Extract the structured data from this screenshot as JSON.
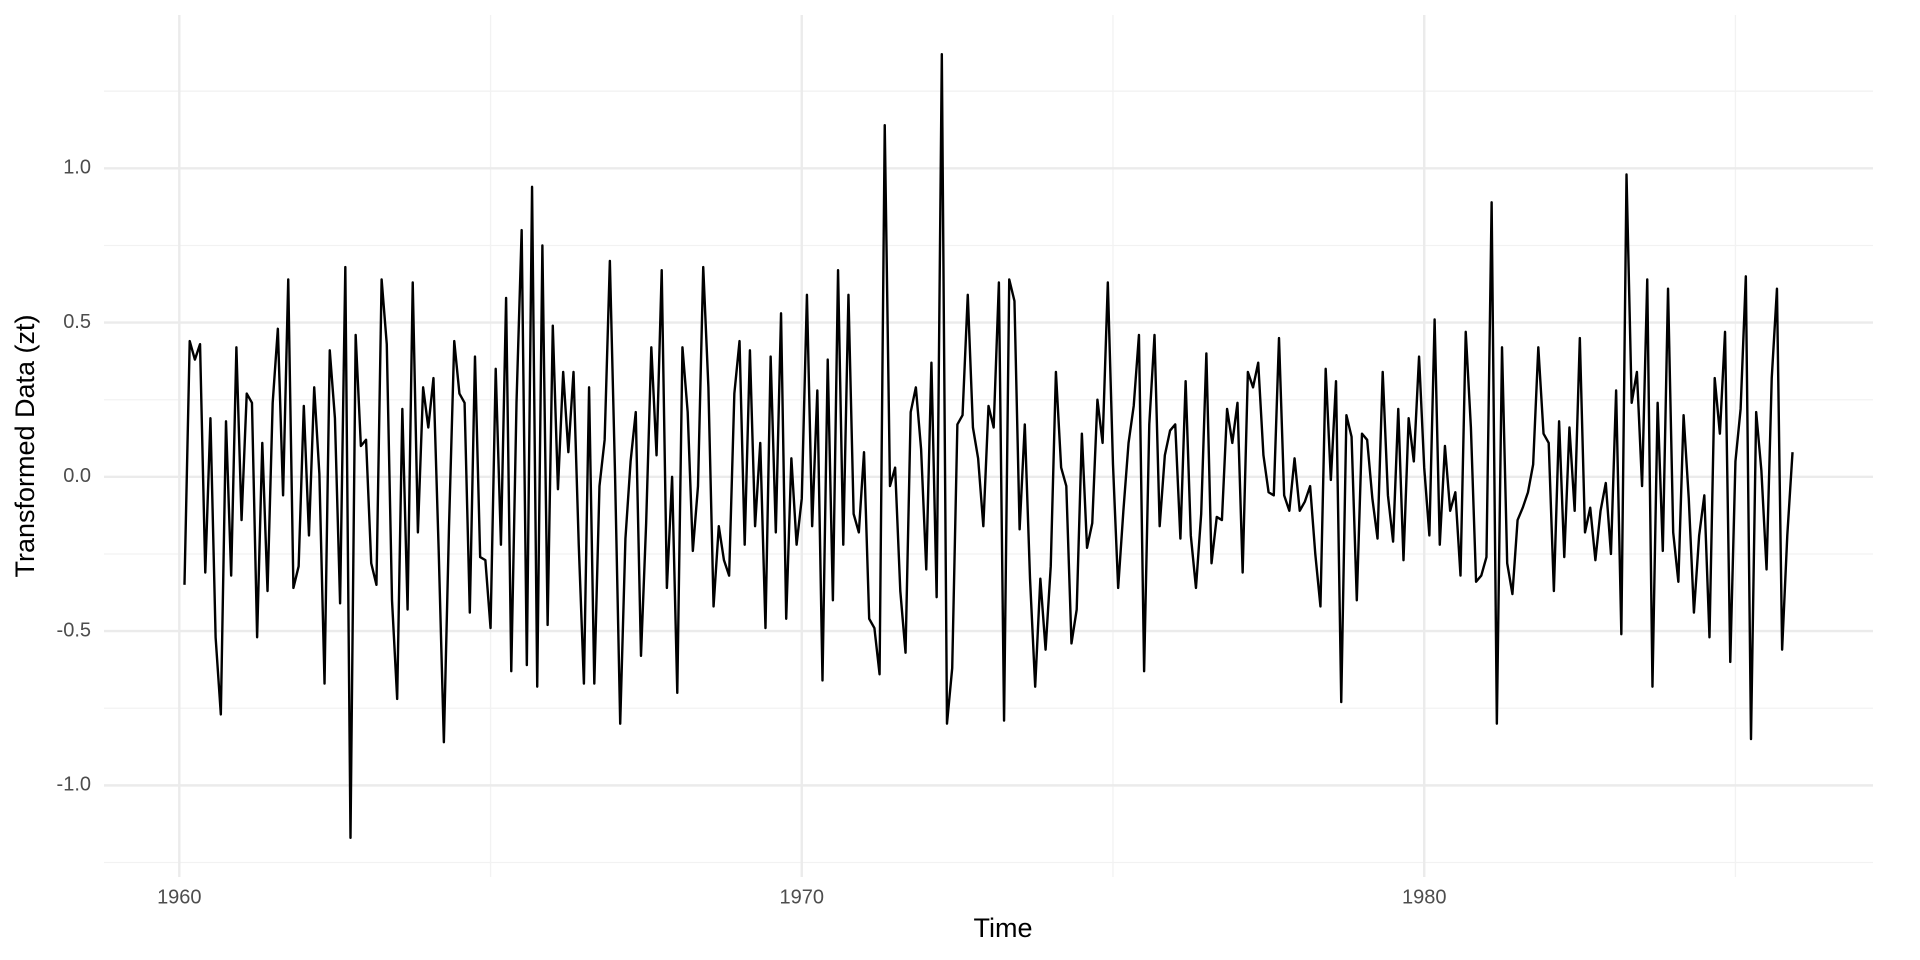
{
  "chart_data": {
    "type": "line",
    "x_label": "Time",
    "y_label": "Transformed Data (zt)",
    "color": "#000000",
    "grid": true,
    "xlim": [
      1958.79,
      1987.21
    ],
    "xticks": [
      1960,
      1970,
      1980
    ],
    "xminor": [
      1965,
      1975,
      1985
    ],
    "ylim": [
      -1.297,
      1.497
    ],
    "yticks": [
      {
        "value": -1,
        "label": "-1.0"
      },
      -0.5,
      {
        "value": 0,
        "label": "0.0"
      },
      0.5,
      {
        "value": 1,
        "label": "1.0"
      }
    ],
    "yminor": [
      -1.25,
      -0.75,
      -0.25,
      0.25,
      0.75,
      1.25
    ],
    "x": [
      1960.083,
      1960.167,
      1960.25,
      1960.333,
      1960.417,
      1960.5,
      1960.583,
      1960.667,
      1960.75,
      1960.833,
      1960.917,
      1961,
      1961.083,
      1961.167,
      1961.25,
      1961.333,
      1961.417,
      1961.5,
      1961.583,
      1961.667,
      1961.75,
      1961.833,
      1961.917,
      1962,
      1962.083,
      1962.167,
      1962.25,
      1962.333,
      1962.417,
      1962.5,
      1962.583,
      1962.667,
      1962.75,
      1962.833,
      1962.917,
      1963,
      1963.083,
      1963.167,
      1963.25,
      1963.333,
      1963.417,
      1963.5,
      1963.583,
      1963.667,
      1963.75,
      1963.833,
      1963.917,
      1964,
      1964.083,
      1964.167,
      1964.25,
      1964.333,
      1964.417,
      1964.5,
      1964.583,
      1964.667,
      1964.75,
      1964.833,
      1964.917,
      1965,
      1965.083,
      1965.167,
      1965.25,
      1965.333,
      1965.417,
      1965.5,
      1965.583,
      1965.667,
      1965.75,
      1965.833,
      1965.917,
      1966,
      1966.083,
      1966.167,
      1966.25,
      1966.333,
      1966.417,
      1966.5,
      1966.583,
      1966.667,
      1966.75,
      1966.833,
      1966.917,
      1967,
      1967.083,
      1967.167,
      1967.25,
      1967.333,
      1967.417,
      1967.5,
      1967.583,
      1967.667,
      1967.75,
      1967.833,
      1967.917,
      1968,
      1968.083,
      1968.167,
      1968.25,
      1968.333,
      1968.417,
      1968.5,
      1968.583,
      1968.667,
      1968.75,
      1968.833,
      1968.917,
      1969,
      1969.083,
      1969.167,
      1969.25,
      1969.333,
      1969.417,
      1969.5,
      1969.583,
      1969.667,
      1969.75,
      1969.833,
      1969.917,
      1970,
      1970.083,
      1970.167,
      1970.25,
      1970.333,
      1970.417,
      1970.5,
      1970.583,
      1970.667,
      1970.75,
      1970.833,
      1970.917,
      1971,
      1971.083,
      1971.167,
      1971.25,
      1971.333,
      1971.417,
      1971.5,
      1971.583,
      1971.667,
      1971.75,
      1971.833,
      1971.917,
      1972,
      1972.083,
      1972.167,
      1972.25,
      1972.333,
      1972.417,
      1972.5,
      1972.583,
      1972.667,
      1972.75,
      1972.833,
      1972.917,
      1973,
      1973.083,
      1973.167,
      1973.25,
      1973.333,
      1973.417,
      1973.5,
      1973.583,
      1973.667,
      1973.75,
      1973.833,
      1973.917,
      1974,
      1974.083,
      1974.167,
      1974.25,
      1974.333,
      1974.417,
      1974.5,
      1974.583,
      1974.667,
      1974.75,
      1974.833,
      1974.917,
      1975,
      1975.083,
      1975.167,
      1975.25,
      1975.333,
      1975.417,
      1975.5,
      1975.583,
      1975.667,
      1975.75,
      1975.833,
      1975.917,
      1976,
      1976.083,
      1976.167,
      1976.25,
      1976.333,
      1976.417,
      1976.5,
      1976.583,
      1976.667,
      1976.75,
      1976.833,
      1976.917,
      1977,
      1977.083,
      1977.167,
      1977.25,
      1977.333,
      1977.417,
      1977.5,
      1977.583,
      1977.667,
      1977.75,
      1977.833,
      1977.917,
      1978,
      1978.083,
      1978.167,
      1978.25,
      1978.333,
      1978.417,
      1978.5,
      1978.583,
      1978.667,
      1978.75,
      1978.833,
      1978.917,
      1979,
      1979.083,
      1979.167,
      1979.25,
      1979.333,
      1979.417,
      1979.5,
      1979.583,
      1979.667,
      1979.75,
      1979.833,
      1979.917,
      1980,
      1980.083,
      1980.167,
      1980.25,
      1980.333,
      1980.417,
      1980.5,
      1980.583,
      1980.667,
      1980.75,
      1980.833,
      1980.917,
      1981,
      1981.083,
      1981.167,
      1981.25,
      1981.333,
      1981.417,
      1981.5,
      1981.583,
      1981.667,
      1981.75,
      1981.833,
      1981.917,
      1982,
      1982.083,
      1982.167,
      1982.25,
      1982.333,
      1982.417,
      1982.5,
      1982.583,
      1982.667,
      1982.75,
      1982.833,
      1982.917,
      1983,
      1983.083,
      1983.167,
      1983.25,
      1983.333,
      1983.417,
      1983.5,
      1983.583,
      1983.667,
      1983.75,
      1983.833,
      1983.917,
      1984,
      1984.083,
      1984.167,
      1984.25,
      1984.333,
      1984.417,
      1984.5,
      1984.583,
      1984.667,
      1984.75,
      1984.833,
      1984.917,
      1985,
      1985.083,
      1985.167,
      1985.25,
      1985.333,
      1985.417,
      1985.5,
      1985.583,
      1985.667,
      1985.75,
      1985.833,
      1985.917
    ],
    "values": [
      -0.35,
      0.44,
      0.38,
      0.43,
      -0.31,
      0.19,
      -0.52,
      -0.77,
      0.18,
      -0.32,
      0.42,
      -0.14,
      0.27,
      0.24,
      -0.52,
      0.11,
      -0.37,
      0.24,
      0.48,
      -0.06,
      0.64,
      -0.36,
      -0.29,
      0.23,
      -0.19,
      0.29,
      0.01,
      -0.67,
      0.41,
      0.19,
      -0.41,
      0.68,
      -1.17,
      0.46,
      0.1,
      0.12,
      -0.28,
      -0.35,
      0.64,
      0.43,
      -0.4,
      -0.72,
      0.22,
      -0.43,
      0.63,
      -0.18,
      0.29,
      0.16,
      0.32,
      -0.24,
      -0.86,
      -0.16,
      0.44,
      0.27,
      0.24,
      -0.44,
      0.39,
      -0.26,
      -0.27,
      -0.49,
      0.35,
      -0.22,
      0.58,
      -0.63,
      0.24,
      0.8,
      -0.61,
      0.94,
      -0.68,
      0.75,
      -0.48,
      0.49,
      -0.04,
      0.34,
      0.08,
      0.34,
      -0.22,
      -0.67,
      0.29,
      -0.67,
      -0.03,
      0.12,
      0.7,
      0.01,
      -0.8,
      -0.2,
      0.05,
      0.21,
      -0.58,
      -0.15,
      0.42,
      0.07,
      0.67,
      -0.36,
      0.0,
      -0.7,
      0.42,
      0.21,
      -0.24,
      -0.03,
      0.68,
      0.29,
      -0.42,
      -0.16,
      -0.27,
      -0.32,
      0.27,
      0.44,
      -0.22,
      0.41,
      -0.16,
      0.11,
      -0.49,
      0.39,
      -0.18,
      0.53,
      -0.46,
      0.06,
      -0.22,
      -0.07,
      0.59,
      -0.16,
      0.28,
      -0.66,
      0.38,
      -0.4,
      0.67,
      -0.22,
      0.59,
      -0.12,
      -0.18,
      0.08,
      -0.46,
      -0.49,
      -0.64,
      1.14,
      -0.03,
      0.03,
      -0.37,
      -0.57,
      0.21,
      0.29,
      0.09,
      -0.3,
      0.37,
      -0.39,
      1.37,
      -0.8,
      -0.62,
      0.17,
      0.2,
      0.59,
      0.16,
      0.06,
      -0.16,
      0.23,
      0.16,
      0.63,
      -0.79,
      0.64,
      0.57,
      -0.17,
      0.17,
      -0.33,
      -0.68,
      -0.33,
      -0.56,
      -0.29,
      0.34,
      0.03,
      -0.03,
      -0.54,
      -0.43,
      0.14,
      -0.23,
      -0.15,
      0.25,
      0.11,
      0.63,
      0.04,
      -0.36,
      -0.11,
      0.11,
      0.23,
      0.46,
      -0.63,
      0.17,
      0.46,
      -0.16,
      0.07,
      0.15,
      0.17,
      -0.2,
      0.31,
      -0.19,
      -0.36,
      -0.12,
      0.4,
      -0.28,
      -0.13,
      -0.14,
      0.22,
      0.11,
      0.24,
      -0.31,
      0.34,
      0.29,
      0.37,
      0.07,
      -0.05,
      -0.06,
      0.45,
      -0.06,
      -0.11,
      0.06,
      -0.11,
      -0.08,
      -0.03,
      -0.25,
      -0.42,
      0.35,
      -0.01,
      0.31,
      -0.73,
      0.2,
      0.13,
      -0.4,
      0.14,
      0.12,
      -0.07,
      -0.2,
      0.34,
      -0.06,
      -0.21,
      0.22,
      -0.27,
      0.19,
      0.05,
      0.39,
      0.03,
      -0.19,
      0.51,
      -0.22,
      0.1,
      -0.11,
      -0.05,
      -0.32,
      0.47,
      0.16,
      -0.34,
      -0.32,
      -0.26,
      0.89,
      -0.8,
      0.42,
      -0.28,
      -0.38,
      -0.14,
      -0.1,
      -0.05,
      0.04,
      0.42,
      0.14,
      0.11,
      -0.37,
      0.18,
      -0.26,
      0.16,
      -0.11,
      0.45,
      -0.18,
      -0.1,
      -0.27,
      -0.11,
      -0.02,
      -0.25,
      0.28,
      -0.51,
      0.98,
      0.24,
      0.34,
      -0.03,
      0.64,
      -0.68,
      0.24,
      -0.24,
      0.61,
      -0.18,
      -0.34,
      0.2,
      -0.07,
      -0.44,
      -0.19,
      -0.06,
      -0.52,
      0.32,
      0.14,
      0.47,
      -0.6,
      0.05,
      0.22,
      0.65,
      -0.85,
      0.21,
      0.02,
      -0.3,
      0.32,
      0.61,
      -0.56,
      -0.19,
      0.08
    ]
  }
}
